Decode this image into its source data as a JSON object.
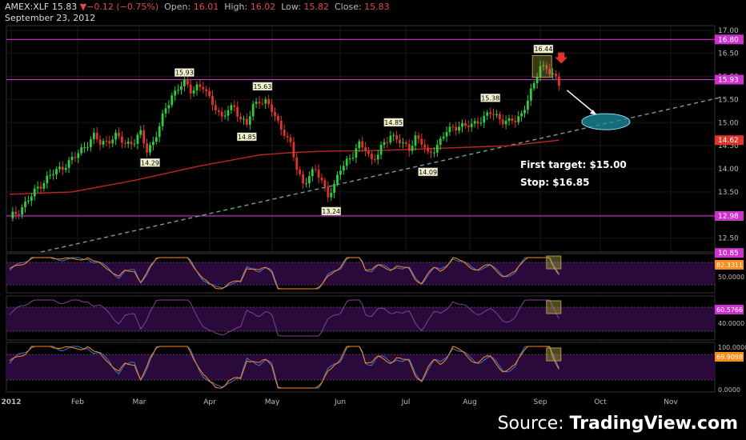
{
  "header": {
    "symbol": "AMEX:XLF",
    "last": "15.83",
    "change": "−0.12 (−0.75%)",
    "open_label": "Open:",
    "open": "16.01",
    "high_label": "High:",
    "high": "16.02",
    "low_label": "Low:",
    "low": "15.82",
    "close_label": "Close:",
    "close": "15.83",
    "date": "September 23, 2012"
  },
  "source": {
    "prefix": "Source: ",
    "brand": "TradingView.com"
  },
  "colors": {
    "up": "#2ecc40",
    "down": "#e0332b",
    "ma": "#c0281f",
    "level": "#cc33cc",
    "trend": "#6fa0a0",
    "ellipse": "#1e8fa0",
    "panel": "#2a0a3a",
    "box": "#a8a040"
  },
  "chart_data": [
    {
      "type": "candlestick",
      "x_ticks": [
        "2012",
        "Feb",
        "Mar",
        "Apr",
        "May",
        "Jun",
        "Jul",
        "Aug",
        "Sep",
        "Oct",
        "Nov"
      ],
      "y_ticks": [
        "17.00",
        "16.50",
        "16.00",
        "15.50",
        "15.00",
        "14.50",
        "14.00",
        "13.50",
        "13.00",
        "12.50"
      ],
      "ylim": [
        12.2,
        17.1
      ],
      "price_markers": [
        {
          "label": "16.80",
          "value": 16.8,
          "color": "#cc33cc"
        },
        {
          "label": "15.93",
          "value": 15.93,
          "color": "#cc33cc"
        },
        {
          "label": "14.62",
          "value": 14.62,
          "color": "#e0332b"
        },
        {
          "label": "12.98",
          "value": 12.98,
          "color": "#cc33cc"
        },
        {
          "label": "10.85",
          "value": 12.18,
          "color": "#cc33cc"
        }
      ],
      "horizontal_levels": [
        16.8,
        15.93,
        12.98
      ],
      "point_labels": [
        {
          "text": "15.93",
          "day": 56,
          "value": 15.93,
          "pos": "above"
        },
        {
          "text": "15.63",
          "day": 81,
          "value": 15.63,
          "pos": "above"
        },
        {
          "text": "14.29",
          "day": 45,
          "value": 14.29,
          "pos": "below"
        },
        {
          "text": "14.85",
          "day": 76,
          "value": 14.85,
          "pos": "below"
        },
        {
          "text": "14.85",
          "day": 123,
          "value": 14.85,
          "pos": "above"
        },
        {
          "text": "13.24",
          "day": 103,
          "value": 13.24,
          "pos": "below"
        },
        {
          "text": "14.09",
          "day": 134,
          "value": 14.09,
          "pos": "below"
        },
        {
          "text": "15.38",
          "day": 154,
          "value": 15.38,
          "pos": "above"
        },
        {
          "text": "16.44",
          "day": 171,
          "value": 16.44,
          "pos": "above"
        }
      ],
      "annotations": [
        "First target: $15.00",
        "Stop: $16.85"
      ],
      "close_path": [
        [
          0,
          12.93
        ],
        [
          3,
          13.1
        ],
        [
          5,
          13.25
        ],
        [
          7,
          13.4
        ],
        [
          9,
          13.6
        ],
        [
          12,
          13.8
        ],
        [
          15,
          13.95
        ],
        [
          18,
          14.1
        ],
        [
          21,
          14.25
        ],
        [
          24,
          14.5
        ],
        [
          27,
          14.7
        ],
        [
          29,
          14.55
        ],
        [
          31,
          14.6
        ],
        [
          34,
          14.7
        ],
        [
          37,
          14.55
        ],
        [
          40,
          14.6
        ],
        [
          42,
          14.75
        ],
        [
          44,
          14.4
        ],
        [
          46,
          14.6
        ],
        [
          48,
          14.9
        ],
        [
          50,
          15.3
        ],
        [
          52,
          15.6
        ],
        [
          54,
          15.75
        ],
        [
          56,
          15.85
        ],
        [
          58,
          15.7
        ],
        [
          60,
          15.8
        ],
        [
          62,
          15.75
        ],
        [
          64,
          15.5
        ],
        [
          66,
          15.35
        ],
        [
          68,
          15.1
        ],
        [
          70,
          15.25
        ],
        [
          72,
          15.35
        ],
        [
          74,
          15.1
        ],
        [
          76,
          14.95
        ],
        [
          78,
          15.35
        ],
        [
          80,
          15.5
        ],
        [
          82,
          15.45
        ],
        [
          84,
          15.25
        ],
        [
          86,
          15.0
        ],
        [
          88,
          14.8
        ],
        [
          90,
          14.5
        ],
        [
          92,
          14.0
        ],
        [
          94,
          13.7
        ],
        [
          96,
          13.85
        ],
        [
          98,
          13.95
        ],
        [
          100,
          13.75
        ],
        [
          102,
          13.45
        ],
        [
          104,
          13.6
        ],
        [
          106,
          14.0
        ],
        [
          108,
          14.2
        ],
        [
          110,
          14.3
        ],
        [
          112,
          14.5
        ],
        [
          114,
          14.45
        ],
        [
          116,
          14.2
        ],
        [
          118,
          14.3
        ],
        [
          120,
          14.55
        ],
        [
          122,
          14.75
        ],
        [
          124,
          14.65
        ],
        [
          126,
          14.5
        ],
        [
          128,
          14.45
        ],
        [
          130,
          14.7
        ],
        [
          132,
          14.55
        ],
        [
          134,
          14.3
        ],
        [
          136,
          14.45
        ],
        [
          138,
          14.6
        ],
        [
          140,
          14.8
        ],
        [
          142,
          14.9
        ],
        [
          144,
          14.95
        ],
        [
          146,
          14.9
        ],
        [
          148,
          14.95
        ],
        [
          150,
          15.05
        ],
        [
          152,
          15.1
        ],
        [
          154,
          15.2
        ],
        [
          156,
          15.15
        ],
        [
          158,
          15.05
        ],
        [
          160,
          15.0
        ],
        [
          162,
          15.05
        ],
        [
          164,
          15.2
        ],
        [
          166,
          15.5
        ],
        [
          168,
          15.8
        ],
        [
          170,
          16.25
        ],
        [
          172,
          16.2
        ],
        [
          174,
          16.0
        ],
        [
          176,
          15.83
        ]
      ],
      "ma_path": [
        [
          0,
          13.45
        ],
        [
          20,
          13.5
        ],
        [
          40,
          13.75
        ],
        [
          60,
          14.05
        ],
        [
          80,
          14.3
        ],
        [
          90,
          14.35
        ],
        [
          100,
          14.38
        ],
        [
          120,
          14.4
        ],
        [
          140,
          14.45
        ],
        [
          160,
          14.5
        ],
        [
          176,
          14.62
        ]
      ],
      "trendline": {
        "from": [
          10,
          12.2
        ],
        "to": [
          228,
          15.55
        ]
      },
      "target_ellipse": {
        "day": 191,
        "value": 15.02
      }
    },
    {
      "type": "line",
      "name": "",
      "y_ticks": [
        "50.0000"
      ],
      "marker": {
        "label": "82.3311",
        "color": "#ff8c1a"
      }
    },
    {
      "type": "line",
      "name": "",
      "y_ticks": [
        "40.0000"
      ],
      "marker": {
        "label": "60.5766",
        "color": "#cc33cc"
      }
    },
    {
      "type": "line",
      "name": "",
      "y_ticks": [
        "100.0000",
        "0.0000"
      ],
      "marker": {
        "label": "69.9098",
        "color": "#ff8c1a"
      }
    }
  ]
}
